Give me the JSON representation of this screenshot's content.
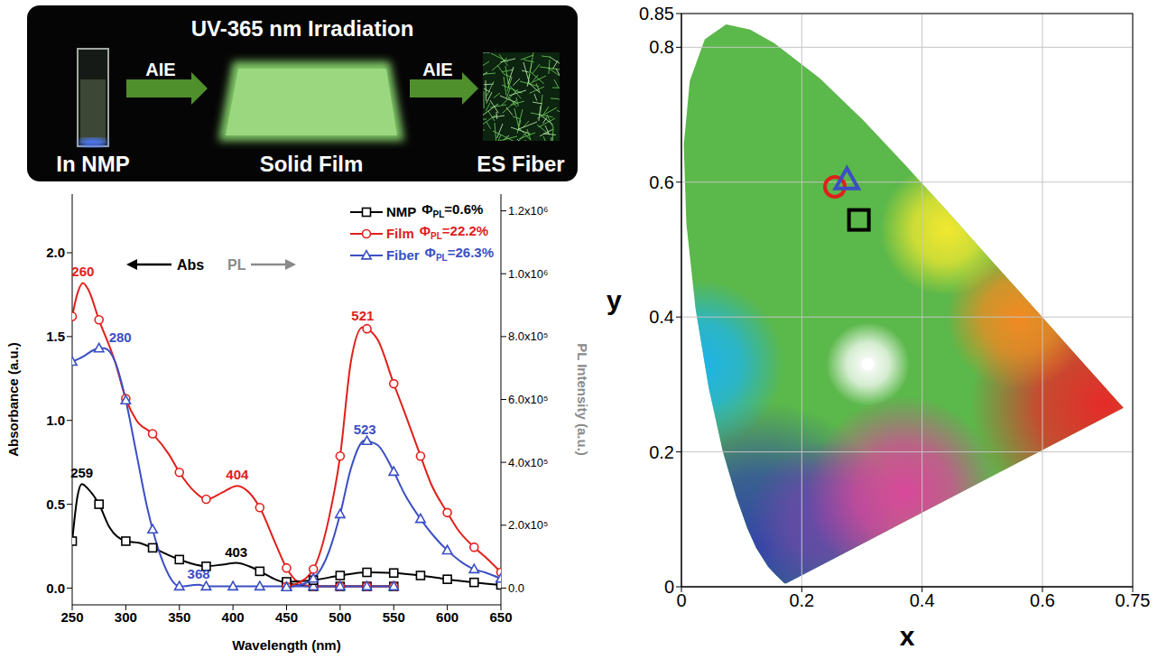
{
  "photo": {
    "title": "UV-365 nm Irradiation",
    "arrow_labels": [
      "AIE",
      "AIE"
    ],
    "samples": [
      "In NMP",
      "Solid Film",
      "ES Fiber"
    ]
  },
  "chart_data": [
    {
      "type": "line",
      "x_label": "Wavelength (nm)",
      "y_label": "Absorbance (a.u.)",
      "y2_label": "PL Intensity (a.u.)",
      "xlim": [
        250,
        650
      ],
      "xticks": [
        250,
        300,
        350,
        400,
        450,
        500,
        550,
        600,
        650
      ],
      "ylim": [
        -0.1,
        2.35
      ],
      "yticks": [
        {
          "value": 0,
          "label": "0.0"
        },
        0.5,
        {
          "value": 1,
          "label": "1.0"
        },
        1.5,
        {
          "value": 2,
          "label": "2.0"
        }
      ],
      "y2lim": [
        -53333,
        1253333
      ],
      "y2ticks": [
        {
          "value": 0,
          "label": "0.0"
        },
        {
          "value": 200000,
          "label": "2.0x10⁵"
        },
        {
          "value": 400000,
          "label": "4.0x10⁵"
        },
        {
          "value": 600000,
          "label": "6.0x10⁵"
        },
        {
          "value": 800000,
          "label": "8.0x10⁵"
        },
        {
          "value": 1000000,
          "label": "1.0x10⁶"
        },
        {
          "value": 1200000,
          "label": "1.2x10⁶"
        }
      ],
      "grid": false,
      "legend": "upper right",
      "arrow_labels": {
        "y": "Abs",
        "y2": "PL"
      },
      "yield_symbol": "Φ",
      "yield_subscript": "PL",
      "series": [
        {
          "name": "NMP",
          "yield_text": "=0.6%",
          "color": "#000000",
          "marker": "square",
          "abs_x": [
            250,
            255,
            259,
            265,
            275,
            285,
            300,
            312,
            325,
            350,
            375,
            390,
            403,
            415,
            425,
            440,
            450,
            475,
            500,
            525,
            550
          ],
          "abs_values": [
            0.28,
            0.55,
            0.62,
            0.59,
            0.5,
            0.36,
            0.28,
            0.27,
            0.24,
            0.17,
            0.13,
            0.14,
            0.15,
            0.13,
            0.1,
            0.05,
            0.03,
            0.01,
            0.01,
            0.01,
            0.01
          ],
          "pl_x": [
            450,
            475,
            500,
            525,
            550,
            575,
            600,
            625,
            650
          ],
          "pl_values": [
            20000,
            25000,
            40000,
            50000,
            48000,
            40000,
            28000,
            18000,
            10000
          ]
        },
        {
          "name": "Film",
          "yield_text": "=22.2%",
          "color": "#e0201b",
          "marker": "circle",
          "abs_x": [
            250,
            255,
            260,
            265,
            275,
            290,
            300,
            310,
            325,
            340,
            350,
            365,
            375,
            390,
            404,
            415,
            425,
            440,
            450,
            460,
            475,
            500,
            525,
            550
          ],
          "abs_values": [
            1.62,
            1.76,
            1.82,
            1.78,
            1.6,
            1.35,
            1.13,
            1.0,
            0.92,
            0.8,
            0.69,
            0.57,
            0.53,
            0.57,
            0.61,
            0.57,
            0.48,
            0.26,
            0.12,
            0.04,
            0.01,
            0.01,
            0.01,
            0.01
          ],
          "pl_x": [
            450,
            460,
            475,
            490,
            500,
            510,
            521,
            525,
            535,
            550,
            560,
            575,
            585,
            600,
            610,
            625,
            635,
            650
          ],
          "pl_values": [
            5000,
            15000,
            60000,
            230000,
            420000,
            720000,
            830000,
            825000,
            790000,
            650000,
            560000,
            420000,
            330000,
            240000,
            185000,
            130000,
            100000,
            50000
          ]
        },
        {
          "name": "Fiber",
          "yield_text": "=26.3%",
          "color": "#3b4fc4",
          "marker": "triangle",
          "abs_x": [
            250,
            260,
            270,
            275,
            280,
            290,
            300,
            310,
            320,
            325,
            335,
            345,
            350,
            368,
            375,
            400,
            425,
            450,
            475,
            500,
            525,
            550
          ],
          "abs_values": [
            1.35,
            1.38,
            1.42,
            1.43,
            1.43,
            1.35,
            1.12,
            0.8,
            0.48,
            0.35,
            0.15,
            0.03,
            0.01,
            0.02,
            0.01,
            0.01,
            0.01,
            0.01,
            0.01,
            0.01,
            0.01,
            0.01
          ],
          "pl_x": [
            450,
            460,
            475,
            490,
            500,
            510,
            523,
            525,
            535,
            550,
            560,
            575,
            600,
            625,
            635,
            650
          ],
          "pl_values": [
            3000,
            8000,
            30000,
            120000,
            235000,
            380000,
            470000,
            468000,
            455000,
            370000,
            300000,
            220000,
            120000,
            60000,
            50000,
            30000
          ]
        }
      ],
      "annotations": [
        {
          "text": "259",
          "x": 259,
          "y": 0.62,
          "axis": "y",
          "color": "#000000"
        },
        {
          "text": "260",
          "x": 260,
          "y": 1.82,
          "axis": "y",
          "color": "#e0201b"
        },
        {
          "text": "280",
          "x": 280,
          "y": 1.43,
          "axis": "y",
          "color": "#3b4fc4"
        },
        {
          "text": "368",
          "x": 368,
          "y": 0.02,
          "axis": "y",
          "color": "#3b4fc4"
        },
        {
          "text": "403",
          "x": 403,
          "y": 0.15,
          "axis": "y",
          "color": "#000000"
        },
        {
          "text": "404",
          "x": 404,
          "y": 0.61,
          "axis": "y",
          "color": "#e0201b"
        },
        {
          "text": "521",
          "x": 521,
          "y": 830000,
          "axis": "y2",
          "color": "#e0201b"
        },
        {
          "text": "523",
          "x": 523,
          "y": 470000,
          "axis": "y2",
          "color": "#3b4fc4"
        }
      ]
    },
    {
      "type": "scatter",
      "x_label": "x",
      "y_label": "y",
      "xlim": [
        0,
        0.75
      ],
      "xticks": [
        0,
        0.2,
        0.4,
        0.6,
        0.75
      ],
      "ylim": [
        0,
        0.85
      ],
      "yticks": [
        0,
        0.2,
        0.4,
        0.6,
        0.8,
        0.85
      ],
      "grid": true,
      "gamut_boundary": {
        "x": [
          0.1741,
          0.1714,
          0.1644,
          0.1566,
          0.144,
          0.1241,
          0.1096,
          0.0913,
          0.0687,
          0.0454,
          0.0235,
          0.0082,
          0.0039,
          0.0139,
          0.0389,
          0.0743,
          0.1142,
          0.1547,
          0.2296,
          0.3016,
          0.3731,
          0.4441,
          0.5125,
          0.5752,
          0.627,
          0.6915,
          0.719,
          0.7347
        ],
        "values": [
          0.005,
          0.0051,
          0.0109,
          0.0177,
          0.0297,
          0.0578,
          0.0868,
          0.1327,
          0.2007,
          0.295,
          0.4127,
          0.5384,
          0.6548,
          0.7502,
          0.812,
          0.8338,
          0.8262,
          0.8059,
          0.7543,
          0.6923,
          0.6245,
          0.5547,
          0.4866,
          0.4242,
          0.3725,
          0.3083,
          0.2809,
          0.2653
        ]
      },
      "series": [
        {
          "color": "#ffffff",
          "marker": "dot",
          "x": [
            0.31
          ],
          "values": [
            0.33
          ]
        },
        {
          "color": "#e0201b",
          "marker": "circle",
          "x": [
            0.255
          ],
          "values": [
            0.593
          ]
        },
        {
          "color": "#3b4fc4",
          "marker": "triangle",
          "x": [
            0.275
          ],
          "values": [
            0.603
          ]
        },
        {
          "color": "#000000",
          "marker": "square",
          "x": [
            0.295
          ],
          "values": [
            0.544
          ]
        }
      ]
    }
  ]
}
